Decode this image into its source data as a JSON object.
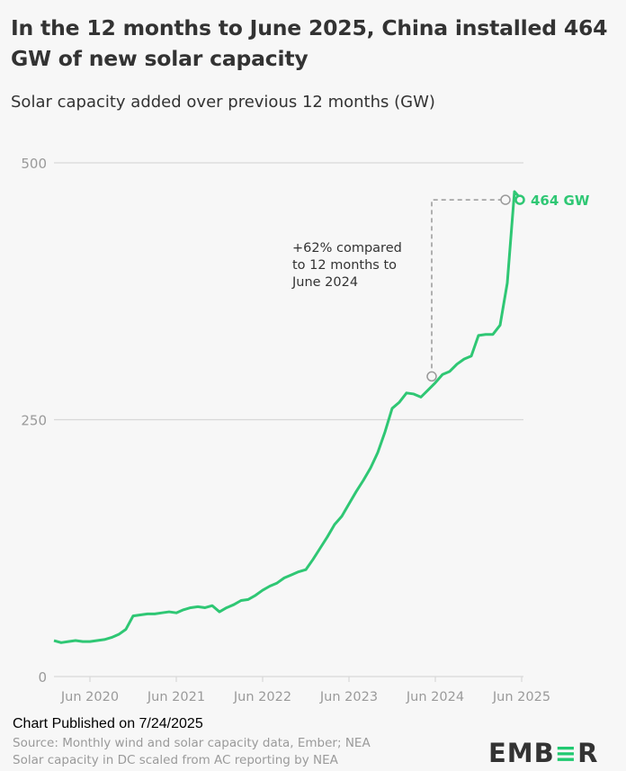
{
  "title": "In the 12 months to June 2025, China installed 464 GW of new solar capacity",
  "subtitle": "Solar capacity added over previous 12 months (GW)",
  "colors": {
    "line": "#2fc774",
    "grid": "#d8d8d8",
    "axis_text": "#9a9a9a",
    "annotation": "#999999"
  },
  "chart_data": {
    "type": "line",
    "title": "In the 12 months to June 2025, China installed 464 GW of new solar capacity",
    "ylabel": "Solar capacity added over previous 12 months (GW)",
    "xlabel": "",
    "ylim": [
      0,
      500
    ],
    "yticks": [
      0,
      250,
      500
    ],
    "grid": true,
    "start_month": "Jan 2020",
    "xtick_labels": [
      "Jun 2020",
      "Jun 2021",
      "Jun 2022",
      "Jun 2023",
      "Jun 2024",
      "Jun 2025"
    ],
    "xtick_month_index": [
      5,
      17,
      29,
      41,
      53,
      65
    ],
    "series": [
      {
        "name": "Solar capacity added over previous 12 months (GW)",
        "values": [
          35,
          33,
          34,
          35,
          34,
          34,
          35,
          36,
          38,
          41,
          46,
          59,
          60,
          61,
          61,
          62,
          63,
          62,
          65,
          67,
          68,
          67,
          69,
          63,
          67,
          70,
          74,
          75,
          79,
          84,
          88,
          91,
          96,
          99,
          102,
          104,
          114,
          125,
          136,
          148,
          156,
          168,
          180,
          191,
          203,
          218,
          238,
          261,
          267,
          276,
          275,
          272,
          279,
          286,
          294,
          297,
          304,
          309,
          312,
          332,
          333,
          333,
          342,
          383,
          472,
          464
        ]
      }
    ],
    "annotations": {
      "end_label": "464 GW",
      "comparison_text": [
        "+62% compared",
        "to 12 months to",
        "June 2024"
      ],
      "comparison_from_index": 53,
      "comparison_to_index": 65
    }
  },
  "footer": {
    "published": "Chart Published on 7/24/2025",
    "source_line1": "Source: Monthly wind and solar capacity data, Ember; NEA",
    "source_line2": "Solar capacity in DC scaled from AC reporting by NEA",
    "logo": "EMBER"
  }
}
